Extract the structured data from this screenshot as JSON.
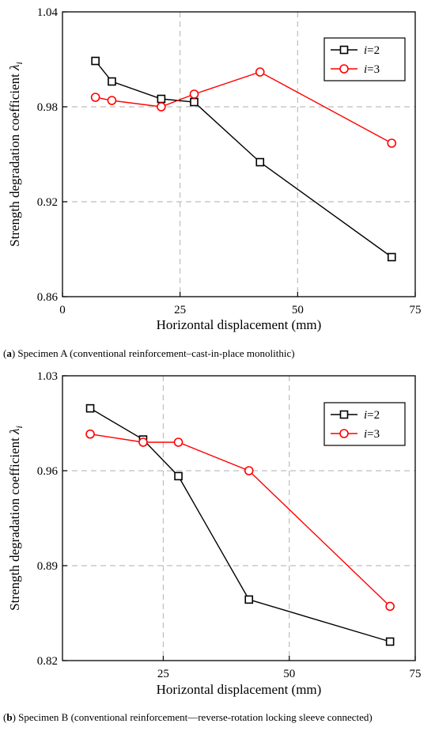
{
  "chart_data": [
    {
      "type": "line",
      "caption_prefix": "(",
      "caption_letter": "a",
      "caption_text": ") Specimen A (conventional reinforcement–cast-in-place monolithic)",
      "xlabel": "Horizontal displacement (mm)",
      "ylabel": "Strength degradation coefficient λ",
      "ylabel_sub": "i",
      "xlim": [
        0,
        75
      ],
      "ylim": [
        0.86,
        1.04
      ],
      "xticks": [
        "0",
        "25",
        "50",
        "75"
      ],
      "xtick_values": [
        0,
        25,
        50,
        75
      ],
      "yticks": [
        "0.86",
        "0.92",
        "0.98",
        "1.04"
      ],
      "ytick_values": [
        0.86,
        0.92,
        0.98,
        1.04
      ],
      "grid": true,
      "legend_position": "top-right",
      "series": [
        {
          "name_italic": "i",
          "name_rest": "=2",
          "marker": "square",
          "color": "#000000",
          "x": [
            7,
            10.5,
            21,
            28,
            42,
            70
          ],
          "y": [
            1.009,
            0.996,
            0.985,
            0.983,
            0.945,
            0.885
          ]
        },
        {
          "name_italic": "i",
          "name_rest": "=3",
          "marker": "circle",
          "color": "#ff0000",
          "x": [
            7,
            10.5,
            21,
            28,
            42,
            70
          ],
          "y": [
            0.986,
            0.984,
            0.98,
            0.988,
            1.002,
            0.957
          ]
        }
      ]
    },
    {
      "type": "line",
      "caption_prefix": "(",
      "caption_letter": "b",
      "caption_text": ") Specimen B (conventional reinforcement—reverse-rotation locking sleeve connected)",
      "xlabel": "Horizontal displacement (mm)",
      "ylabel": "Strength degradation coefficient λ",
      "ylabel_sub": "i",
      "xlim": [
        5,
        75
      ],
      "ylim": [
        0.82,
        1.03
      ],
      "xticks": [
        "25",
        "50",
        "75"
      ],
      "xtick_values": [
        25,
        50,
        75
      ],
      "yticks": [
        "0.82",
        "0.89",
        "0.96",
        "1.03"
      ],
      "ytick_values": [
        0.82,
        0.89,
        0.96,
        1.03
      ],
      "grid": true,
      "legend_position": "top-right",
      "series": [
        {
          "name_italic": "i",
          "name_rest": "=2",
          "marker": "square",
          "color": "#000000",
          "x": [
            10.5,
            21,
            28,
            42,
            70
          ],
          "y": [
            1.006,
            0.983,
            0.956,
            0.865,
            0.834
          ]
        },
        {
          "name_italic": "i",
          "name_rest": "=3",
          "marker": "circle",
          "color": "#ff0000",
          "x": [
            10.5,
            21,
            28,
            42,
            70
          ],
          "y": [
            0.987,
            0.981,
            0.981,
            0.96,
            0.86
          ]
        }
      ]
    }
  ]
}
